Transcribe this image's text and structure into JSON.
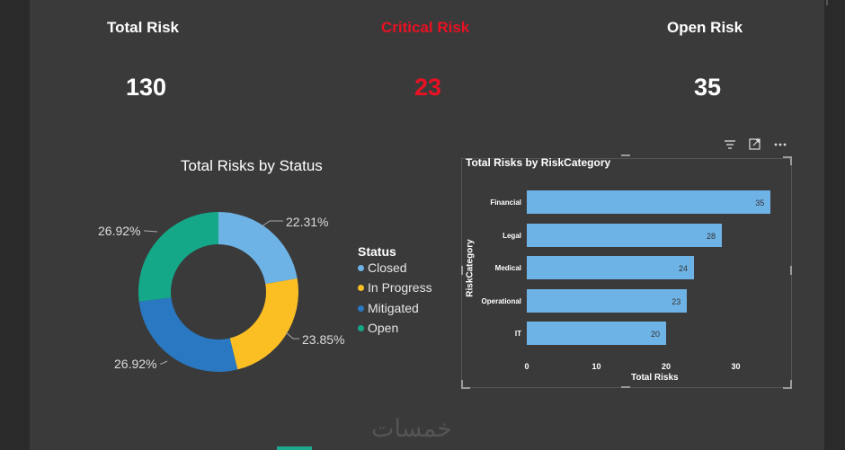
{
  "kpis": {
    "total": {
      "title": "Total Risk",
      "value": "130"
    },
    "critical": {
      "title": "Critical Risk",
      "value": "23"
    },
    "open": {
      "title": "Open Risk",
      "value": "35"
    }
  },
  "donut": {
    "title": "Total Risks by Status",
    "legend_title": "Status",
    "slices": [
      {
        "name": "Closed",
        "percent": 22.31,
        "label": "22.31%",
        "color": "#6eb3e6"
      },
      {
        "name": "In Progress",
        "percent": 23.85,
        "label": "23.85%",
        "color": "#fbbf24"
      },
      {
        "name": "Mitigated",
        "percent": 26.92,
        "label": "26.92%",
        "color": "#2a78c2"
      },
      {
        "name": "Open",
        "percent": 26.92,
        "label": "26.92%",
        "color": "#15a888"
      }
    ]
  },
  "bar_chart": {
    "title": "Total Risks by RiskCategory",
    "ylabel": "RiskCategory",
    "xlabel": "Total Risks",
    "ticks": [
      "0",
      "10",
      "20",
      "30"
    ]
  },
  "chart_data": [
    {
      "type": "pie",
      "title": "Total Risks by Status",
      "categories": [
        "Closed",
        "In Progress",
        "Mitigated",
        "Open"
      ],
      "values": [
        22.31,
        23.85,
        26.92,
        26.92
      ],
      "legend": "right"
    },
    {
      "type": "bar",
      "title": "Total Risks by RiskCategory",
      "categories": [
        "Financial",
        "Legal",
        "Medical",
        "Operational",
        "IT"
      ],
      "values": [
        35,
        28,
        24,
        23,
        20
      ],
      "xlabel": "Total Risks",
      "ylabel": "RiskCategory",
      "xlim": [
        0,
        35
      ],
      "color": "#6eb3e6"
    }
  ],
  "watermark": "خمسات",
  "colors": {
    "accent_red": "#e81123",
    "bar": "#6eb3e6",
    "canvas": "#3a3a3a"
  }
}
